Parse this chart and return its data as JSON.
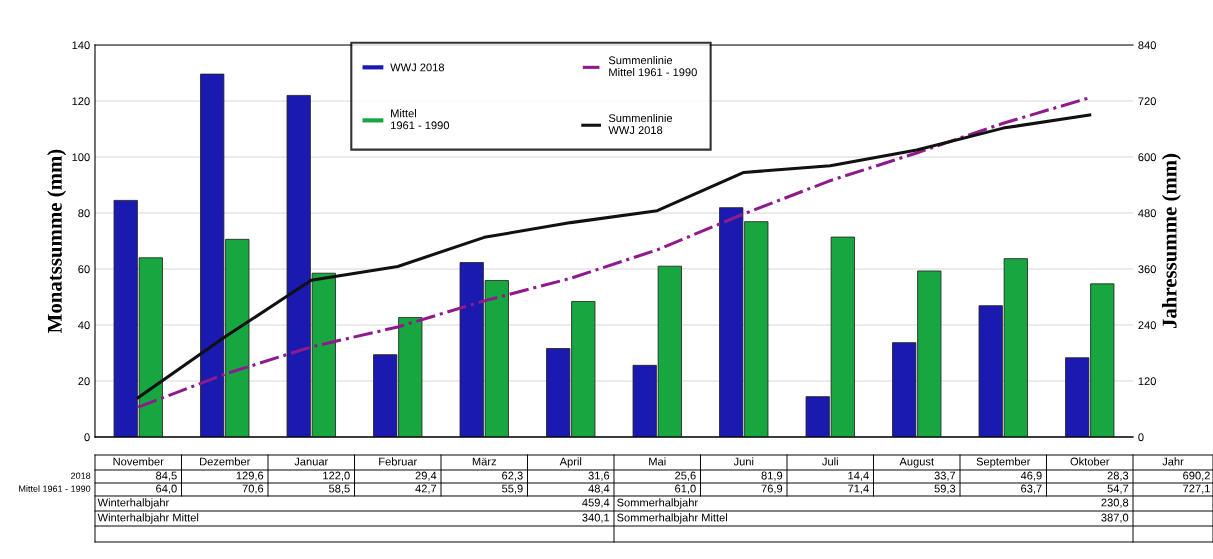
{
  "chart_data": {
    "type": "bar",
    "ylabel": "Monatssumme (mm)",
    "y2label": "Jahressumme (mm)",
    "categories": [
      "November",
      "Dezember",
      "Januar",
      "Februar",
      "März",
      "April",
      "Mai",
      "Juni",
      "Juli",
      "August",
      "September",
      "Oktober"
    ],
    "series": [
      {
        "name": "WWJ 2018",
        "color": "#1a1ab0",
        "values": [
          84.5,
          129.6,
          122.0,
          29.4,
          62.3,
          31.6,
          25.6,
          81.9,
          14.4,
          33.7,
          46.9,
          28.3
        ],
        "value_labels": [
          "84,5",
          "129,6",
          "122,0",
          "29,4",
          "62,3",
          "31,6",
          "25,6",
          "81,9",
          "14,4",
          "33,7",
          "46,9",
          "28,3"
        ]
      },
      {
        "name": "Mittel\n1961 - 1990",
        "color": "#18a640",
        "values": [
          64.0,
          70.6,
          58.5,
          42.7,
          55.9,
          48.4,
          61.0,
          76.9,
          71.4,
          59.3,
          63.7,
          54.7
        ],
        "value_labels": [
          "64,0",
          "70,6",
          "58,5",
          "42,7",
          "55,9",
          "48,4",
          "61,0",
          "76,9",
          "71,4",
          "59,3",
          "63,7",
          "54,7"
        ]
      },
      {
        "name": "Summenlinie\nMittel 1961 - 1990",
        "type": "line",
        "axis": "y2",
        "color": "#8e1a8e",
        "line_style": "dashdot",
        "values": [
          64.0,
          134.6,
          193.1,
          235.8,
          291.7,
          340.1,
          401.1,
          478.0,
          549.4,
          608.7,
          672.4,
          727.1
        ]
      },
      {
        "name": "Summenlinie\nWWJ 2018",
        "type": "line",
        "axis": "y2",
        "color": "#111111",
        "line_style": "solid",
        "values": [
          84.5,
          214.1,
          336.1,
          365.5,
          427.8,
          459.4,
          485.0,
          566.9,
          581.3,
          615.0,
          661.9,
          690.2
        ]
      }
    ],
    "ylim": [
      0,
      140
    ],
    "yticks": [
      0,
      20,
      40,
      60,
      80,
      100,
      120,
      140
    ],
    "y2lim": [
      0,
      840
    ],
    "y2ticks": [
      0,
      120,
      240,
      360,
      480,
      600,
      720,
      840
    ],
    "grid": "y",
    "legend": "top",
    "annotations": [
      "2018",
      "Mittel 1961 - 1990",
      "Jahr",
      "690,2",
      "727,1",
      "Winterhalbjahr",
      "459,4",
      "Sommerhalbjahr",
      "230,8",
      "Winterhalbjahr Mittel",
      "340,1",
      "Sommerhalbjahr Mittel",
      "387,0"
    ]
  }
}
